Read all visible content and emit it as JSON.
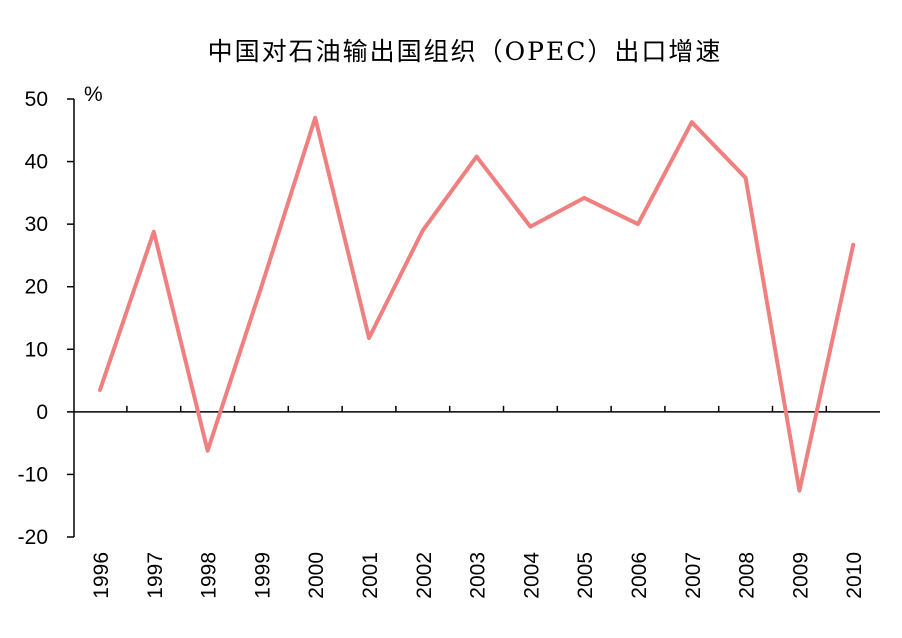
{
  "chart_data": {
    "type": "line",
    "title": "中国对石油输出国组织（OPEC）出口增速",
    "ylabel": "%",
    "xlabel": "",
    "ylim": [
      -20,
      50
    ],
    "yticks": [
      -20,
      -10,
      0,
      10,
      20,
      30,
      40,
      50
    ],
    "categories": [
      "1996",
      "1997",
      "1998",
      "1999",
      "2000",
      "2001",
      "2002",
      "2003",
      "2004",
      "2005",
      "2006",
      "2007",
      "2008",
      "2009",
      "2010"
    ],
    "series": [
      {
        "name": "出口增速",
        "color": "#F08080",
        "values": [
          3.5,
          28.8,
          -6.2,
          20.0,
          47.0,
          11.8,
          29.0,
          40.8,
          29.6,
          34.2,
          30.0,
          46.3,
          37.4,
          -12.6,
          26.7
        ]
      }
    ],
    "grid": false,
    "legend": "none"
  }
}
